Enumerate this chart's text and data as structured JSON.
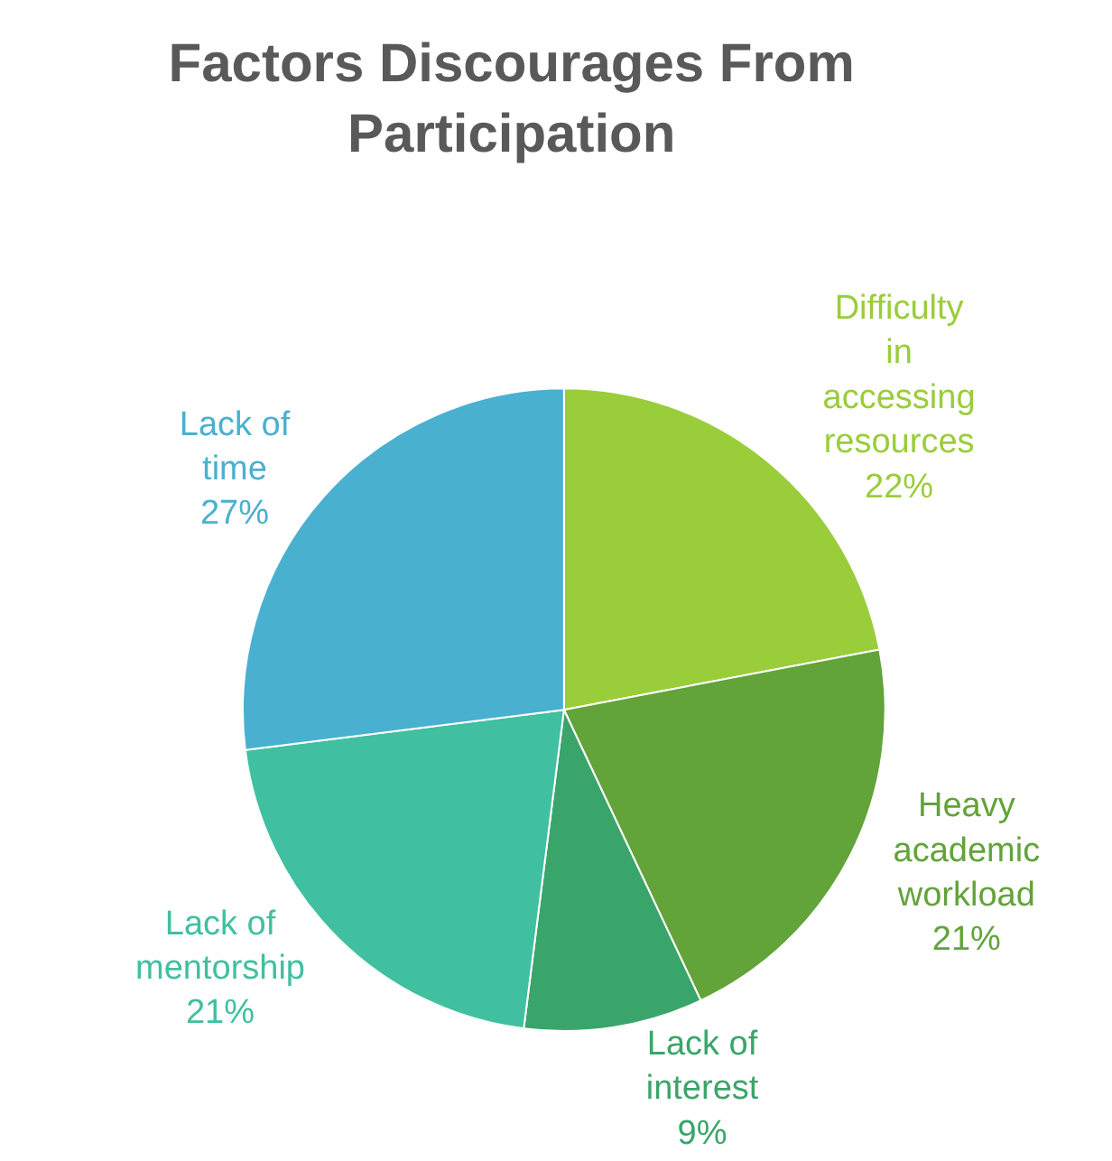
{
  "chart_data": {
    "type": "pie",
    "title": "Factors Discourages From Participation",
    "categories": [
      "Difficulty in accessing resources",
      "Heavy academic workload",
      "Lack of interest",
      "Lack of mentorship",
      "Lack of time"
    ],
    "values": [
      22,
      21,
      9,
      21,
      27
    ],
    "value_labels": [
      "22%",
      "21%",
      "9%",
      "21%",
      "27%"
    ],
    "colors": [
      "#9acd3a",
      "#62a33a",
      "#3aa56a",
      "#40c0a0",
      "#4ab0d0"
    ],
    "legend": false
  }
}
